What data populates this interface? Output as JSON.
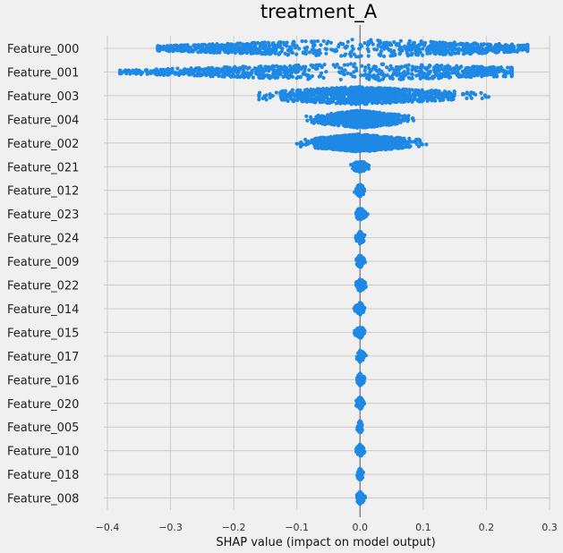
{
  "chart_data": {
    "type": "scatter",
    "subtype": "beeswarm",
    "title": "treatment_A",
    "xlabel": "SHAP value (impact on model output)",
    "ylabel": "",
    "xlim": [
      -0.4,
      0.3
    ],
    "x_ticks": [
      "−0.4",
      "−0.3",
      "−0.2",
      "−0.1",
      "0.0",
      "0.1",
      "0.2",
      "0.3"
    ],
    "grid": true,
    "color": "#1e88e5",
    "features": [
      {
        "name": "Feature_000",
        "min": -0.32,
        "max": 0.265
      },
      {
        "name": "Feature_001",
        "min": -0.38,
        "max": 0.24
      },
      {
        "name": "Feature_003",
        "min": -0.16,
        "max": 0.215
      },
      {
        "name": "Feature_004",
        "min": -0.085,
        "max": 0.085
      },
      {
        "name": "Feature_002",
        "min": -0.1,
        "max": 0.105
      },
      {
        "name": "Feature_021",
        "min": -0.016,
        "max": 0.017
      },
      {
        "name": "Feature_012",
        "min": -0.01,
        "max": 0.01
      },
      {
        "name": "Feature_023",
        "min": -0.006,
        "max": 0.016
      },
      {
        "name": "Feature_024",
        "min": -0.008,
        "max": 0.008
      },
      {
        "name": "Feature_009",
        "min": -0.008,
        "max": 0.008
      },
      {
        "name": "Feature_022",
        "min": -0.006,
        "max": 0.015
      },
      {
        "name": "Feature_014",
        "min": -0.012,
        "max": 0.007
      },
      {
        "name": "Feature_015",
        "min": -0.012,
        "max": 0.007
      },
      {
        "name": "Feature_017",
        "min": -0.005,
        "max": 0.012
      },
      {
        "name": "Feature_016",
        "min": -0.005,
        "max": 0.01
      },
      {
        "name": "Feature_020",
        "min": -0.006,
        "max": 0.008
      },
      {
        "name": "Feature_005",
        "min": -0.005,
        "max": 0.005
      },
      {
        "name": "Feature_010",
        "min": -0.006,
        "max": 0.008
      },
      {
        "name": "Feature_018",
        "min": -0.005,
        "max": 0.006
      },
      {
        "name": "Feature_008",
        "min": -0.005,
        "max": 0.01
      }
    ]
  }
}
